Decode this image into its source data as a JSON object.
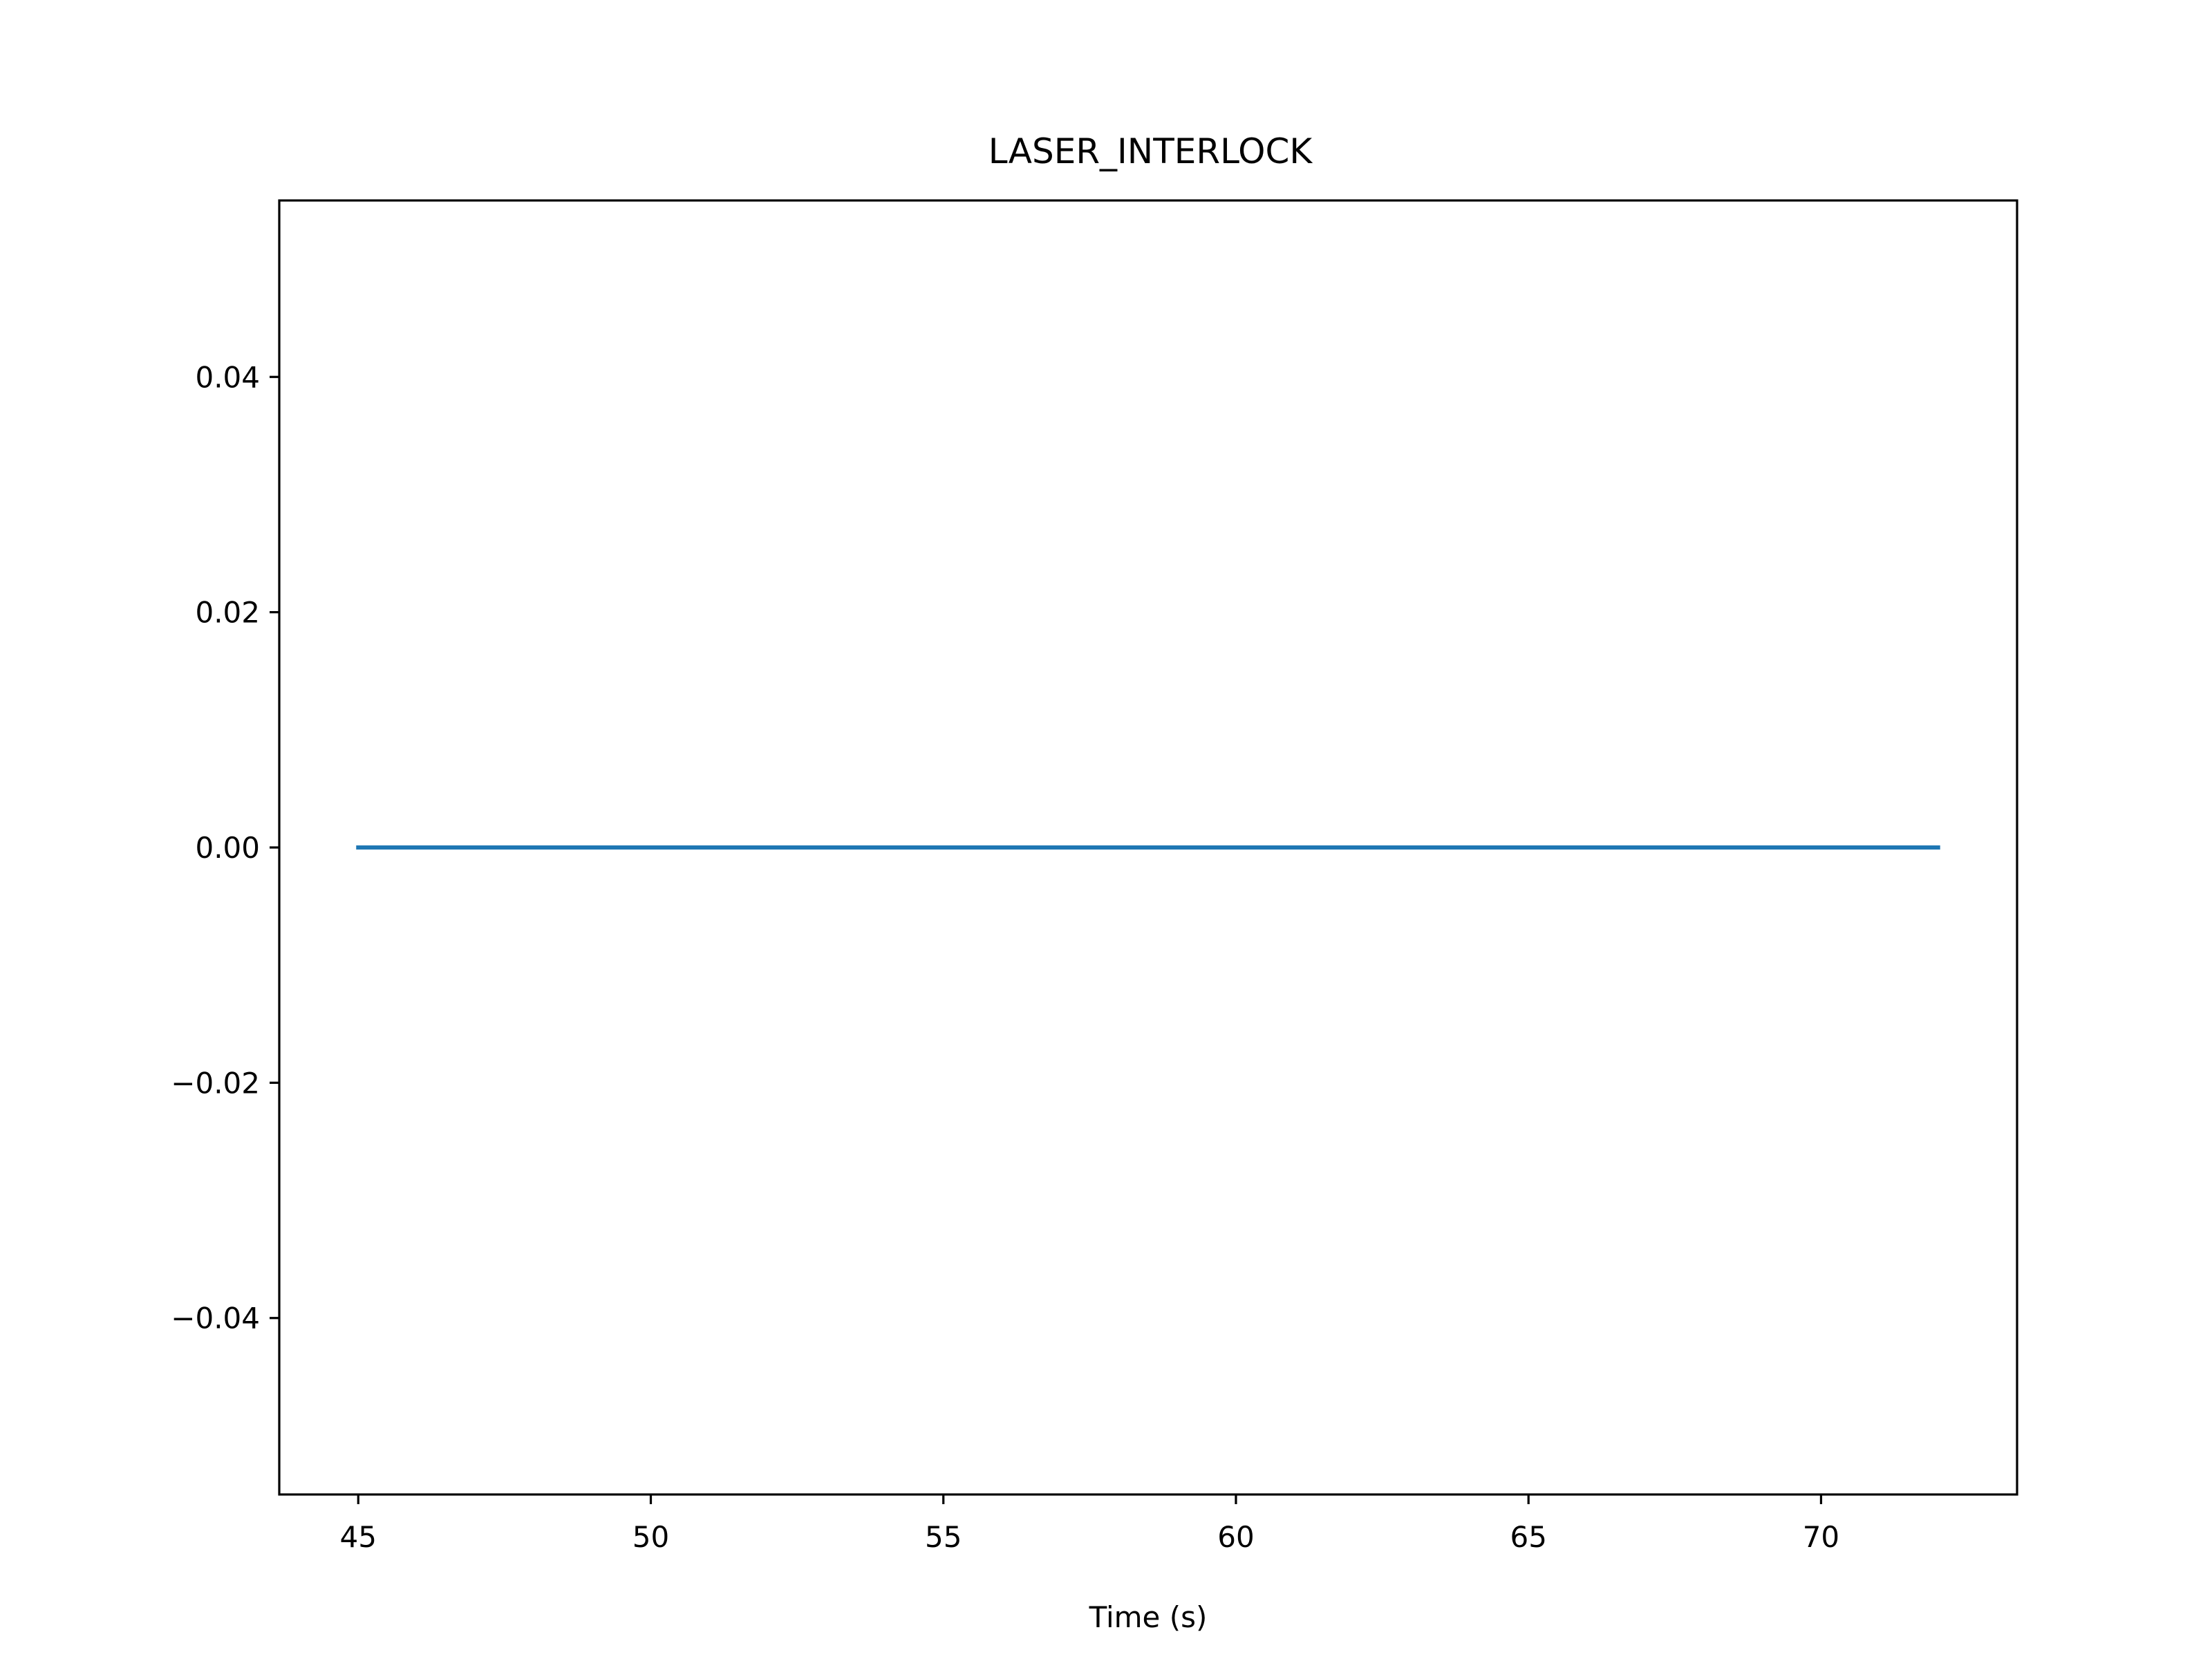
{
  "chart_data": {
    "type": "line",
    "title": "LASER_INTERLOCK",
    "xlabel": "Time (s)",
    "ylabel": "",
    "xlim": [
      43.65,
      73.35
    ],
    "ylim": [
      -0.055,
      0.055
    ],
    "x_ticks": [
      45,
      50,
      55,
      60,
      65,
      70
    ],
    "x_tick_labels": [
      "45",
      "50",
      "55",
      "60",
      "65",
      "70"
    ],
    "y_ticks": [
      -0.04,
      -0.02,
      0.0,
      0.02,
      0.04
    ],
    "y_tick_labels": [
      "−0.04",
      "−0.02",
      "0.00",
      "0.02",
      "0.04"
    ],
    "grid": false,
    "series": [
      {
        "color": "#1f77b4",
        "x": [
          45,
          72
        ],
        "y": [
          0,
          0
        ]
      }
    ]
  }
}
